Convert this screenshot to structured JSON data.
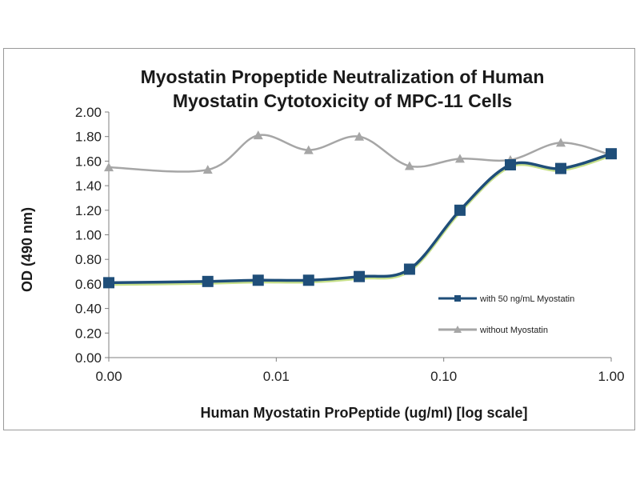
{
  "chart_data": {
    "type": "line",
    "title_lines": [
      "Myostatin Propeptide Neutralization of Human",
      "Myostatin Cytotoxicity of MPC-11 Cells"
    ],
    "xlabel": "Human Myostatin ProPeptide (ug/ml) [log scale]",
    "ylabel": "OD (490 nm)",
    "x_scale": "log",
    "x_ticks": [
      0.001,
      0.01,
      0.1,
      1.0
    ],
    "x_tick_labels": [
      "0.00",
      "0.01",
      "0.10",
      "1.00"
    ],
    "ylim": [
      0,
      2
    ],
    "y_ticks": [
      0,
      0.2,
      0.4,
      0.6,
      0.8,
      1.0,
      1.2,
      1.4,
      1.6,
      1.8,
      2.0
    ],
    "y_tick_labels": [
      "0.00",
      "0.20",
      "0.40",
      "0.60",
      "0.80",
      "1.00",
      "1.20",
      "1.40",
      "1.60",
      "1.80",
      "2.00"
    ],
    "legend_position": "right",
    "series": [
      {
        "name": "with 50 ng/mL Myostatin",
        "color": "#1f4e79",
        "marker": "square",
        "x": [
          0.001,
          0.0039,
          0.0078,
          0.0156,
          0.0313,
          0.0625,
          0.125,
          0.25,
          0.5,
          1.0
        ],
        "values": [
          0.61,
          0.62,
          0.63,
          0.63,
          0.66,
          0.72,
          1.2,
          1.57,
          1.54,
          1.66
        ]
      },
      {
        "name": "without Myostatin",
        "color": "#a6a6a6",
        "marker": "triangle",
        "x": [
          0.001,
          0.0039,
          0.0078,
          0.0156,
          0.0313,
          0.0625,
          0.125,
          0.25,
          0.5,
          1.0
        ],
        "values": [
          1.55,
          1.53,
          1.81,
          1.69,
          1.8,
          1.56,
          1.62,
          1.61,
          1.75,
          1.65
        ]
      }
    ]
  }
}
